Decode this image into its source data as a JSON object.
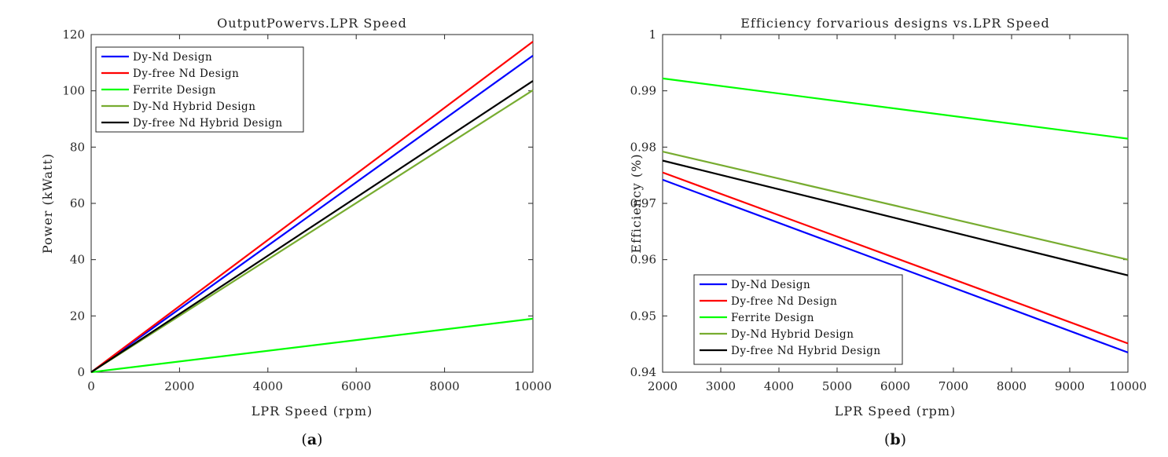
{
  "colors": {
    "blue": "#0000ff",
    "red": "#ff0000",
    "green": "#00ff00",
    "olive": "#77ac30",
    "black": "#000000"
  },
  "chart_data": [
    {
      "type": "line",
      "panel": "a",
      "title": "OutputPowervs.LPR Speed",
      "xlabel": "LPR Speed (rpm)",
      "ylabel": "Power (kWatt)",
      "caption_open": "(",
      "caption_letter": "a",
      "caption_close": ")",
      "xlim": [
        0,
        10000
      ],
      "ylim": [
        0,
        120
      ],
      "xticks": [
        0,
        2000,
        4000,
        6000,
        8000,
        10000
      ],
      "yticks": [
        0,
        20,
        40,
        60,
        80,
        100,
        120
      ],
      "legend_location": "top-left",
      "grid": false,
      "series": [
        {
          "name": "Dy-Nd Design",
          "color": "#0000ff",
          "x": [
            0,
            10000
          ],
          "y": [
            0,
            112.5
          ]
        },
        {
          "name": "Dy-free Nd Design",
          "color": "#ff0000",
          "x": [
            0,
            10000
          ],
          "y": [
            0,
            117.5
          ]
        },
        {
          "name": "Ferrite Design",
          "color": "#00ff00",
          "x": [
            0,
            10000
          ],
          "y": [
            0,
            19
          ]
        },
        {
          "name": "Dy-Nd Hybrid Design",
          "color": "#77ac30",
          "x": [
            0,
            10000
          ],
          "y": [
            0,
            100.2
          ]
        },
        {
          "name": "Dy-free Nd Hybrid Design",
          "color": "#000000",
          "x": [
            0,
            10000
          ],
          "y": [
            0,
            103.5
          ]
        }
      ]
    },
    {
      "type": "line",
      "panel": "b",
      "title": "Efficiency forvarious designs vs.LPR Speed",
      "xlabel": "LPR Speed (rpm)",
      "ylabel": "Efficiency (%)",
      "caption_open": "(",
      "caption_letter": "b",
      "caption_close": ")",
      "xlim": [
        2000,
        10000
      ],
      "ylim": [
        0.94,
        1
      ],
      "xticks": [
        2000,
        3000,
        4000,
        5000,
        6000,
        7000,
        8000,
        9000,
        10000
      ],
      "yticks": [
        0.94,
        0.95,
        0.96,
        0.97,
        0.98,
        0.99,
        1
      ],
      "legend_location": "bottom-left",
      "grid": false,
      "series": [
        {
          "name": "Dy-Nd Design",
          "color": "#0000ff",
          "x": [
            2000,
            10000
          ],
          "y": [
            0.9742,
            0.9435
          ]
        },
        {
          "name": "Dy-free Nd Design",
          "color": "#ff0000",
          "x": [
            2000,
            10000
          ],
          "y": [
            0.9755,
            0.9451
          ]
        },
        {
          "name": "Ferrite Design",
          "color": "#00ff00",
          "x": [
            2000,
            10000
          ],
          "y": [
            0.9922,
            0.9815
          ]
        },
        {
          "name": "Dy-Nd Hybrid Design",
          "color": "#77ac30",
          "x": [
            2000,
            10000
          ],
          "y": [
            0.9792,
            0.96
          ]
        },
        {
          "name": "Dy-free Nd Hybrid Design",
          "color": "#000000",
          "x": [
            2000,
            10000
          ],
          "y": [
            0.9776,
            0.9572
          ]
        }
      ]
    }
  ]
}
